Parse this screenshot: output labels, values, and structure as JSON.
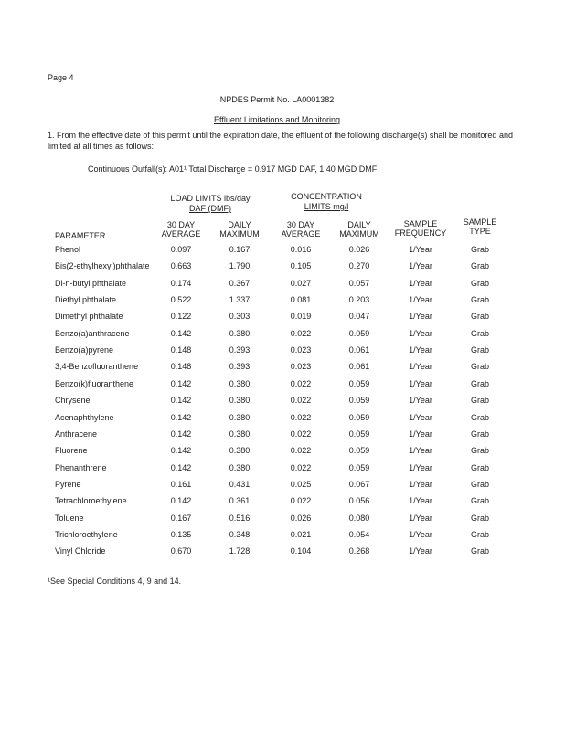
{
  "page_label": "Page 4",
  "permit_title": "NPDES Permit No. LA0001382",
  "section_title": "Effluent Limitations and Monitoring",
  "paragraph_line1": "1.  From the effective date of this permit until the expiration date, the effluent of the following discharge(s) shall be monitored and",
  "paragraph_line2": "limited at all times as follows:",
  "outfall_line": "Continuous Outfall(s): A01¹ Total Discharge = 0.917 MGD DAF, 1.40 MGD DMF",
  "group_headers": {
    "load_line1": "LOAD LIMITS lbs/day",
    "load_line2": "DAF (DMF)",
    "conc_line1": "CONCENTRATION",
    "conc_line2": "LIMITS mg/l"
  },
  "columns": {
    "parameter": "PARAMETER",
    "load_avg_1": "30 DAY",
    "load_avg_2": "AVERAGE",
    "load_max_1": "DAILY",
    "load_max_2": "MAXIMUM",
    "conc_avg_1": "30 DAY",
    "conc_avg_2": "AVERAGE",
    "conc_max_1": "DAILY",
    "conc_max_2": "MAXIMUM",
    "freq_1": "SAMPLE",
    "freq_2": "FREQUENCY",
    "type_1": "SAMPLE",
    "type_2": "TYPE"
  },
  "rows": [
    {
      "p": "Phenol",
      "la": "0.097",
      "lm": "0.167",
      "ca": "0.016",
      "cm": "0.026",
      "f": "1/Year",
      "t": "Grab"
    },
    {
      "p": "Bis(2-ethylhexyl)phthalate",
      "la": "0.663",
      "lm": "1.790",
      "ca": "0.105",
      "cm": "0.270",
      "f": "1/Year",
      "t": "Grab"
    },
    {
      "p": "Di-n-butyl phthalate",
      "la": "0.174",
      "lm": "0.367",
      "ca": "0.027",
      "cm": "0.057",
      "f": "1/Year",
      "t": "Grab"
    },
    {
      "p": "Diethyl phthalate",
      "la": "0.522",
      "lm": "1.337",
      "ca": "0.081",
      "cm": "0.203",
      "f": "1/Year",
      "t": "Grab"
    },
    {
      "p": "Dimethyl phthalate",
      "la": "0.122",
      "lm": "0.303",
      "ca": "0.019",
      "cm": "0.047",
      "f": "1/Year",
      "t": "Grab"
    },
    {
      "p": "Benzo(a)anthracene",
      "la": "0.142",
      "lm": "0.380",
      "ca": "0.022",
      "cm": "0.059",
      "f": "1/Year",
      "t": "Grab"
    },
    {
      "p": "Benzo(a)pyrene",
      "la": "0.148",
      "lm": "0.393",
      "ca": "0.023",
      "cm": "0.061",
      "f": "1/Year",
      "t": "Grab"
    },
    {
      "p": "3,4-Benzofluoranthene",
      "la": "0.148",
      "lm": "0.393",
      "ca": "0.023",
      "cm": "0.061",
      "f": "1/Year",
      "t": "Grab"
    },
    {
      "p": "Benzo(k)fluoranthene",
      "la": "0.142",
      "lm": "0.380",
      "ca": "0.022",
      "cm": "0.059",
      "f": "1/Year",
      "t": "Grab"
    },
    {
      "p": "Chrysene",
      "la": "0.142",
      "lm": "0.380",
      "ca": "0.022",
      "cm": "0.059",
      "f": "1/Year",
      "t": "Grab"
    },
    {
      "p": "Acenaphthylene",
      "la": "0.142",
      "lm": "0.380",
      "ca": "0.022",
      "cm": "0.059",
      "f": "1/Year",
      "t": "Grab"
    },
    {
      "p": "Anthracene",
      "la": "0.142",
      "lm": "0.380",
      "ca": "0.022",
      "cm": "0.059",
      "f": "1/Year",
      "t": "Grab"
    },
    {
      "p": "Fluorene",
      "la": "0.142",
      "lm": "0.380",
      "ca": "0.022",
      "cm": "0.059",
      "f": "1/Year",
      "t": "Grab"
    },
    {
      "p": "Phenanthrene",
      "la": "0.142",
      "lm": "0.380",
      "ca": "0.022",
      "cm": "0.059",
      "f": "1/Year",
      "t": "Grab"
    },
    {
      "p": "Pyrene",
      "la": "0.161",
      "lm": "0.431",
      "ca": "0.025",
      "cm": "0.067",
      "f": "1/Year",
      "t": "Grab"
    },
    {
      "p": "Tetrachloroethylene",
      "la": "0.142",
      "lm": "0.361",
      "ca": "0.022",
      "cm": "0.056",
      "f": "1/Year",
      "t": "Grab"
    },
    {
      "p": "Toluene",
      "la": "0.167",
      "lm": "0.516",
      "ca": "0.026",
      "cm": "0.080",
      "f": "1/Year",
      "t": "Grab"
    },
    {
      "p": "Trichloroethylene",
      "la": "0.135",
      "lm": "0.348",
      "ca": "0.021",
      "cm": "0.054",
      "f": "1/Year",
      "t": "Grab"
    },
    {
      "p": "Vinyl Chloride",
      "la": "0.670",
      "lm": "1.728",
      "ca": "0.104",
      "cm": "0.268",
      "f": "1/Year",
      "t": "Grab"
    }
  ],
  "footnote": "¹See Special Conditions 4, 9 and 14."
}
